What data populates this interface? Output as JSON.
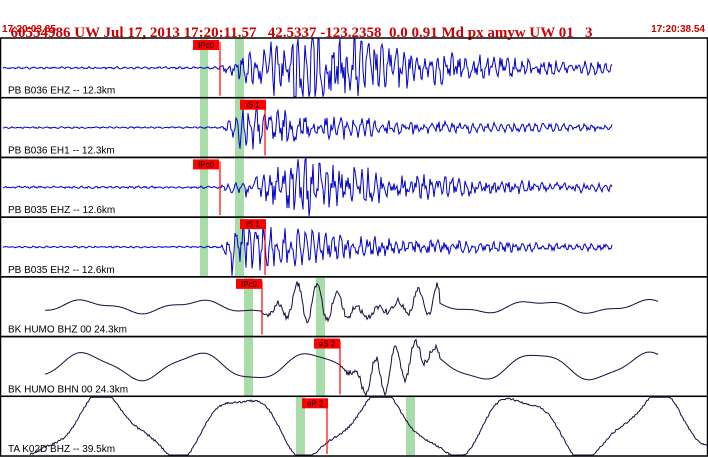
{
  "header": {
    "text": "60554986 UW Jul 17, 2013 17:20:11.57   42.5337 -123.2358  0.0 0.91 Md px amyw UW 01   3"
  },
  "time_axis": {
    "start": "17:20:03.85",
    "end": "17:20:38.54"
  },
  "colors": {
    "panel_border": "#000000",
    "trace_short_period": "#0000cc",
    "trace_broadband": "#1a0a3a",
    "pick_marker": "#ff0000",
    "window_band": "#a8dca8",
    "header_text": "#cc0000"
  },
  "channels": [
    {
      "label": "PB B036 EHZ -- 12.3km",
      "pick": "IPc0",
      "trace_color": "trace_short_period"
    },
    {
      "label": "PB B036 EH1 -- 12.3km",
      "pick": "iS 1",
      "trace_color": "trace_short_period"
    },
    {
      "label": "PB B035 EHZ -- 12.6km",
      "pick": "IPc0",
      "trace_color": "trace_short_period"
    },
    {
      "label": "PB B035 EH2 -- 12.6km",
      "pick": "iS 1",
      "trace_color": "trace_short_period"
    },
    {
      "label": "BK HUMO BHZ 00 24.3km",
      "pick": "IPc0",
      "trace_color": "trace_broadband"
    },
    {
      "label": "BK HUMO BHN 00 24.3km",
      "pick": "eS 2",
      "trace_color": "trace_broadband"
    },
    {
      "label": "TA K02D BHZ -- 39.5km",
      "pick": "eP 2",
      "trace_color": "trace_broadband"
    }
  ]
}
